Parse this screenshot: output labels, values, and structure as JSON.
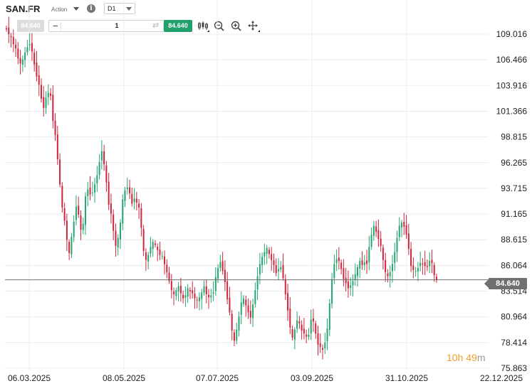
{
  "header": {
    "symbol": "SAN.FR",
    "asset_type": "Action",
    "info_icon": "info-icon",
    "timeframe": "D1"
  },
  "trade_bar": {
    "sell_price": "84.640",
    "quantity": "1",
    "minus_label": "−",
    "plus_label": "+",
    "swap_icon": "swap-icon",
    "buy_price": "84.640"
  },
  "toolbar": {
    "tools": [
      "candlestick-icon",
      "zoom-out-icon",
      "zoom-in-icon",
      "move-icon"
    ]
  },
  "colors": {
    "up": "#26a671",
    "down": "#d0263c",
    "grid": "#ececec",
    "price_line": "#707070",
    "buy": "#22a06b",
    "countdown": "#f0a028"
  },
  "chart_data": {
    "type": "candlestick",
    "y_ticks": [
      "109.016",
      "106.466",
      "103.916",
      "101.366",
      "98.815",
      "96.265",
      "93.715",
      "91.165",
      "88.615",
      "86.064",
      "83.514",
      "80.964",
      "78.414",
      "75.863"
    ],
    "ylim": [
      75.863,
      109.016
    ],
    "x_ticks": [
      "06.03.2025",
      "08.05.2025",
      "07.07.2025",
      "03.09.2025",
      "31.10.2025",
      "22.12.2025"
    ],
    "current_price": "84.640",
    "closes": [
      109.5,
      109.0,
      108.7,
      108.0,
      107.6,
      106.6,
      106.1,
      106.5,
      107.2,
      107.7,
      108.0,
      107.3,
      106.0,
      104.8,
      104.0,
      102.6,
      101.7,
      102.7,
      103.2,
      102.9,
      100.4,
      99.0,
      96.6,
      94.1,
      91.8,
      90.5,
      88.6,
      87.3,
      88.9,
      90.4,
      91.9,
      91.1,
      89.6,
      90.2,
      92.9,
      93.6,
      93.1,
      93.3,
      94.1,
      95.0,
      96.3,
      97.4,
      96.1,
      94.3,
      92.1,
      91.2,
      89.5,
      88.0,
      88.8,
      90.3,
      92.6,
      93.5,
      93.8,
      93.2,
      92.2,
      92.7,
      92.3,
      91.8,
      89.8,
      87.5,
      86.6,
      87.1,
      87.9,
      88.4,
      88.1,
      87.6,
      87.1,
      87.0,
      86.2,
      85.4,
      84.5,
      83.6,
      83.2,
      83.6,
      84.0,
      83.3,
      82.8,
      83.1,
      83.8,
      83.5,
      83.3,
      82.8,
      82.6,
      82.9,
      83.4,
      84.0,
      83.2,
      82.9,
      83.1,
      83.4,
      84.9,
      85.8,
      86.4,
      85.5,
      84.4,
      82.7,
      81.4,
      79.6,
      78.6,
      79.7,
      81.0,
      82.4,
      82.8,
      82.1,
      81.4,
      80.9,
      82.2,
      83.6,
      85.0,
      86.2,
      86.9,
      87.4,
      87.8,
      87.2,
      86.6,
      86.1,
      85.3,
      85.7,
      85.9,
      84.8,
      83.2,
      81.6,
      79.9,
      78.9,
      79.7,
      80.6,
      80.3,
      79.6,
      79.3,
      79.0,
      79.2,
      80.7,
      80.5,
      79.3,
      78.2,
      78.0,
      77.7,
      78.4,
      79.8,
      82.3,
      84.7,
      86.2,
      86.7,
      86.5,
      85.7,
      84.7,
      84.3,
      83.8,
      84.1,
      84.5,
      85.2,
      85.9,
      86.5,
      86.1,
      86.4,
      86.2,
      87.9,
      89.1,
      90.0,
      89.4,
      88.7,
      88.0,
      86.6,
      85.4,
      85.0,
      85.4,
      86.2,
      87.4,
      88.8,
      90.0,
      90.3,
      89.9,
      89.1,
      87.7,
      86.0,
      85.6,
      85.5,
      85.8,
      86.3,
      86.2,
      86.0,
      85.9,
      86.5,
      86.3,
      85.1,
      84.6
    ]
  }
}
